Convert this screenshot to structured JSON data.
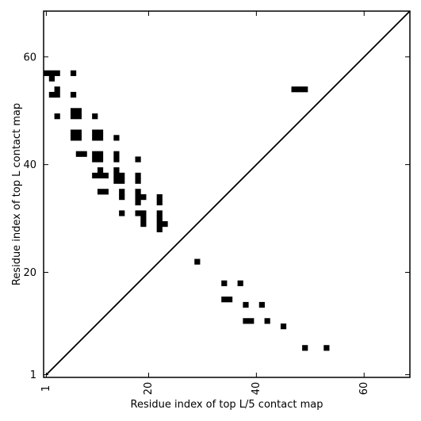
{
  "chart_data": {
    "type": "heatmap",
    "title": "",
    "xlabel": "Residue index of top L/5 contact map",
    "ylabel": "Residue index of top L contact map",
    "xlim": [
      0.5,
      68.5
    ],
    "ylim": [
      0.5,
      68.5
    ],
    "x_ticks": [
      1,
      20,
      40,
      60
    ],
    "y_ticks": [
      1,
      20,
      40,
      60
    ],
    "x_tick_labels": [
      "1",
      "20",
      "40",
      "60"
    ],
    "y_tick_labels": [
      "1",
      "20",
      "40",
      "60"
    ],
    "x_tick_label_rotation": 270,
    "diagonal": {
      "from": [
        1,
        1
      ],
      "to": [
        68.5,
        68.5
      ]
    },
    "grid": false,
    "colors": {
      "cell": "#000000",
      "background": "#ffffff",
      "axis": "#000000"
    },
    "lower_triangle_contacts": [
      [
        29,
        22
      ],
      [
        34,
        18
      ],
      [
        37,
        18
      ],
      [
        34,
        15
      ],
      [
        35,
        15
      ],
      [
        38,
        14
      ],
      [
        41,
        14
      ],
      [
        38,
        11
      ],
      [
        39,
        11
      ],
      [
        42,
        11
      ],
      [
        45,
        10
      ],
      [
        49,
        6
      ],
      [
        53,
        6
      ],
      [
        47,
        54
      ],
      [
        48,
        54
      ],
      [
        49,
        54
      ]
    ],
    "upper_triangle_contacts": [
      [
        1,
        57
      ],
      [
        2,
        57
      ],
      [
        3,
        57
      ],
      [
        6,
        57
      ],
      [
        2,
        56
      ],
      [
        3,
        54
      ],
      [
        2,
        53
      ],
      [
        3,
        53
      ],
      [
        6,
        53
      ],
      [
        6,
        50
      ],
      [
        7,
        50
      ],
      [
        3,
        49
      ],
      [
        6,
        49
      ],
      [
        7,
        49
      ],
      [
        10,
        49
      ],
      [
        6,
        46
      ],
      [
        7,
        46
      ],
      [
        10,
        46
      ],
      [
        11,
        46
      ],
      [
        6,
        45
      ],
      [
        7,
        45
      ],
      [
        10,
        45
      ],
      [
        11,
        45
      ],
      [
        14,
        45
      ],
      [
        7,
        42
      ],
      [
        8,
        42
      ],
      [
        10,
        42
      ],
      [
        11,
        42
      ],
      [
        14,
        42
      ],
      [
        10,
        41
      ],
      [
        11,
        41
      ],
      [
        14,
        41
      ],
      [
        18,
        41
      ],
      [
        11,
        39
      ],
      [
        14,
        39
      ],
      [
        10,
        38
      ],
      [
        11,
        38
      ],
      [
        12,
        38
      ],
      [
        14,
        38
      ],
      [
        15,
        38
      ],
      [
        18,
        38
      ],
      [
        14,
        37
      ],
      [
        15,
        37
      ],
      [
        18,
        37
      ],
      [
        11,
        35
      ],
      [
        12,
        35
      ],
      [
        15,
        35
      ],
      [
        18,
        35
      ],
      [
        15,
        34
      ],
      [
        18,
        34
      ],
      [
        19,
        34
      ],
      [
        22,
        34
      ],
      [
        18,
        33
      ],
      [
        22,
        33
      ],
      [
        15,
        31
      ],
      [
        18,
        31
      ],
      [
        19,
        31
      ],
      [
        22,
        31
      ],
      [
        19,
        30
      ],
      [
        22,
        30
      ],
      [
        19,
        29
      ],
      [
        22,
        29
      ],
      [
        23,
        29
      ],
      [
        22,
        28
      ]
    ]
  }
}
